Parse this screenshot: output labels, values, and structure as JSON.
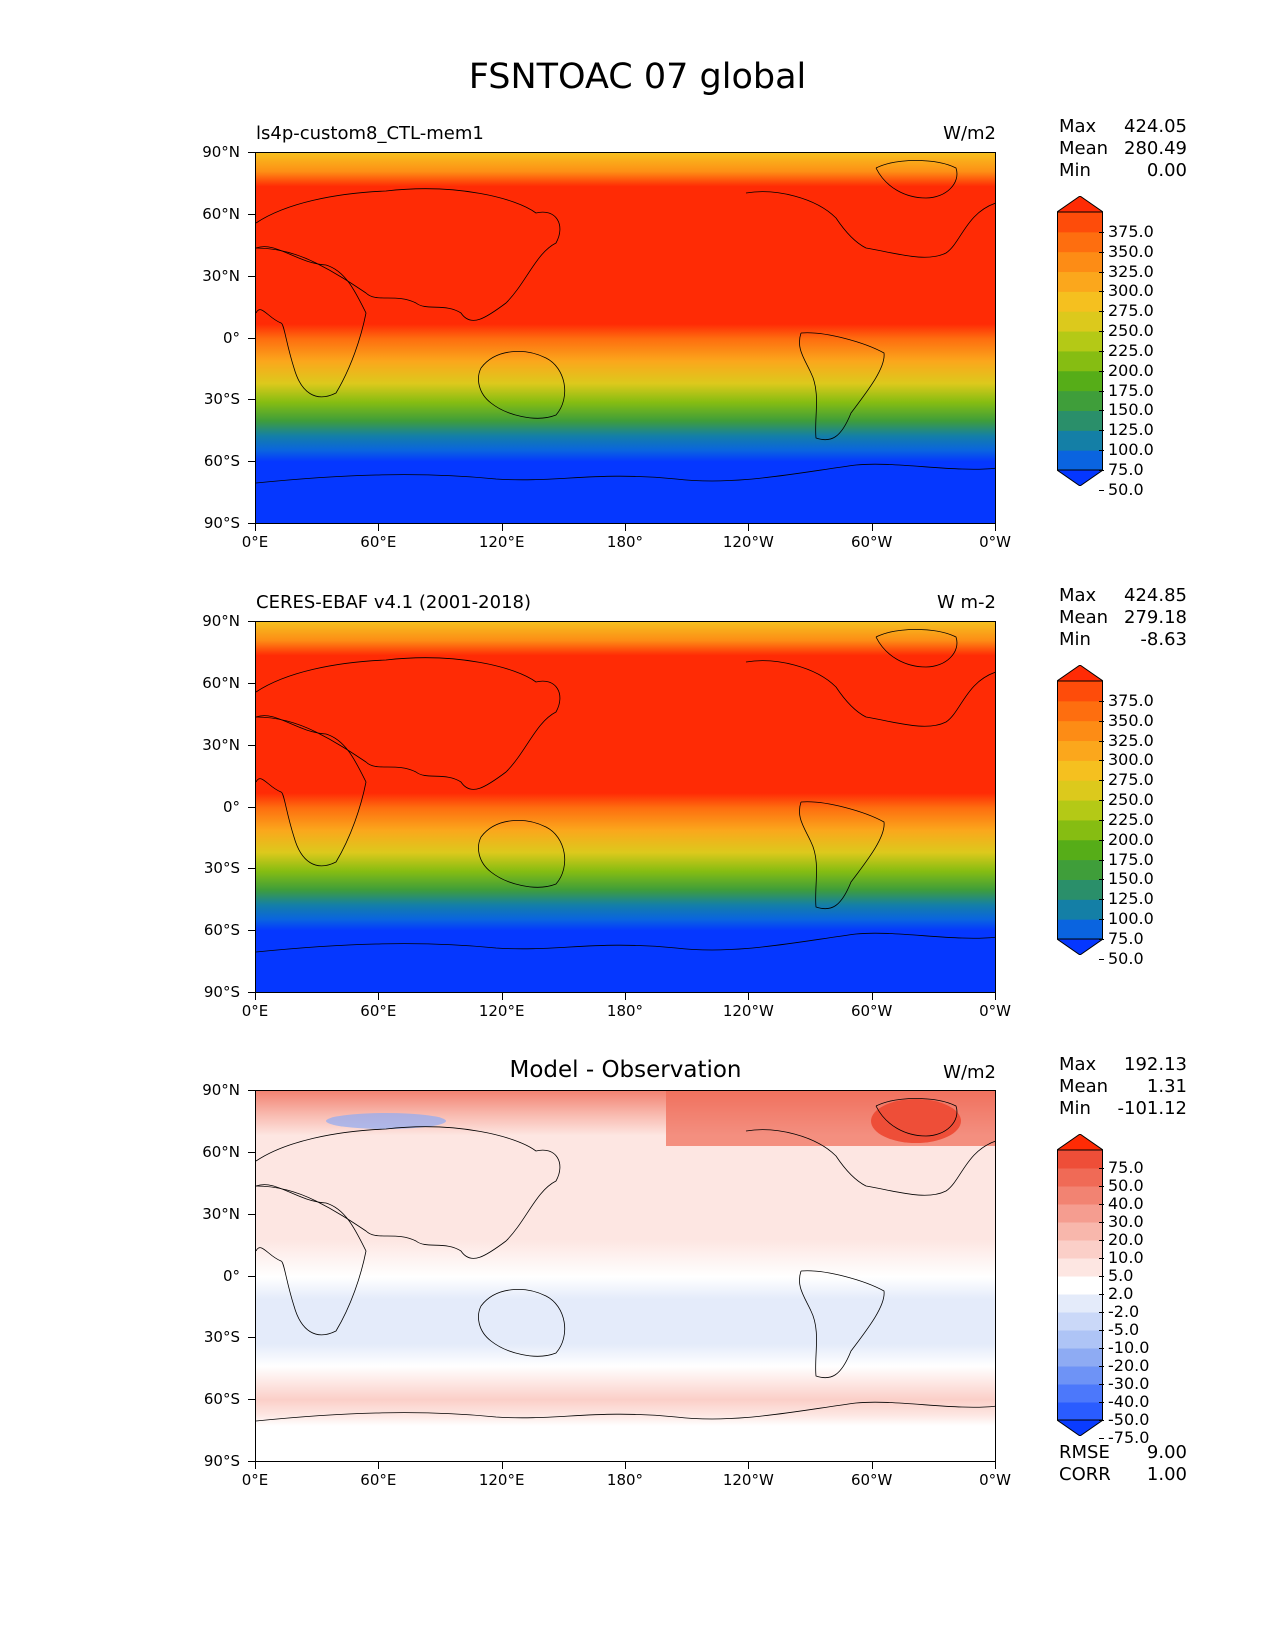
{
  "figure": {
    "title": "FSNTOAC 07 global"
  },
  "axes": {
    "lat_labels": [
      "90°N",
      "60°N",
      "30°N",
      "0°",
      "30°S",
      "60°S",
      "90°S"
    ],
    "lon_labels": [
      "0°E",
      "60°E",
      "120°E",
      "180°",
      "120°W",
      "60°W",
      "0°W"
    ]
  },
  "panels": [
    {
      "title": "ls4p-custom8_CTL-mem1",
      "units": "W/m2",
      "stats": [
        {
          "name": "Max",
          "value": "424.05"
        },
        {
          "name": "Mean",
          "value": "280.49"
        },
        {
          "name": "Min",
          "value": "0.00"
        }
      ],
      "colorbar": {
        "labels": [
          "375.0",
          "350.0",
          "325.0",
          "300.0",
          "275.0",
          "250.0",
          "225.0",
          "200.0",
          "175.0",
          "150.0",
          "125.0",
          "100.0",
          "75.0",
          "50.0"
        ],
        "colors": [
          "#0537ff",
          "#0a64e0",
          "#147fa6",
          "#2a8f6a",
          "#3f9e3a",
          "#56ad18",
          "#86bd12",
          "#b4c916",
          "#dcc91c",
          "#f5c01f",
          "#fba71c",
          "#fd8c15",
          "#fe6e0f",
          "#fe4c0a",
          "#ff2b05"
        ]
      }
    },
    {
      "title": "CERES-EBAF v4.1 (2001-2018)",
      "units": "W m-2",
      "stats": [
        {
          "name": "Max",
          "value": "424.85"
        },
        {
          "name": "Mean",
          "value": "279.18"
        },
        {
          "name": "Min",
          "value": "-8.63"
        }
      ],
      "colorbar": {
        "labels": [
          "375.0",
          "350.0",
          "325.0",
          "300.0",
          "275.0",
          "250.0",
          "225.0",
          "200.0",
          "175.0",
          "150.0",
          "125.0",
          "100.0",
          "75.0",
          "50.0"
        ],
        "colors": [
          "#0537ff",
          "#0a64e0",
          "#147fa6",
          "#2a8f6a",
          "#3f9e3a",
          "#56ad18",
          "#86bd12",
          "#b4c916",
          "#dcc91c",
          "#f5c01f",
          "#fba71c",
          "#fd8c15",
          "#fe6e0f",
          "#fe4c0a",
          "#ff2b05"
        ]
      }
    },
    {
      "title": "Model - Observation",
      "units": "W/m2",
      "stats": [
        {
          "name": "Max",
          "value": "192.13"
        },
        {
          "name": "Mean",
          "value": "1.31"
        },
        {
          "name": "Min",
          "value": "-101.12"
        }
      ],
      "colorbar": {
        "labels": [
          "75.0",
          "50.0",
          "40.0",
          "30.0",
          "20.0",
          "10.0",
          "5.0",
          "2.0",
          "-2.0",
          "-5.0",
          "-10.0",
          "-20.0",
          "-30.0",
          "-40.0",
          "-50.0",
          "-75.0"
        ],
        "colors": [
          "#0a3cff",
          "#2a5cff",
          "#4c78fb",
          "#6e93f6",
          "#8eabf3",
          "#aec4f6",
          "#cad8f8",
          "#e4ebfa",
          "#ffffff",
          "#fde6e2",
          "#fbcfc8",
          "#f8b7ac",
          "#f59d90",
          "#f28372",
          "#f06a56",
          "#ee4e38",
          "#ff2b05"
        ]
      },
      "extra_stats": [
        {
          "name": "RMSE",
          "value": "9.00"
        },
        {
          "name": "CORR",
          "value": "1.00"
        }
      ]
    }
  ]
}
